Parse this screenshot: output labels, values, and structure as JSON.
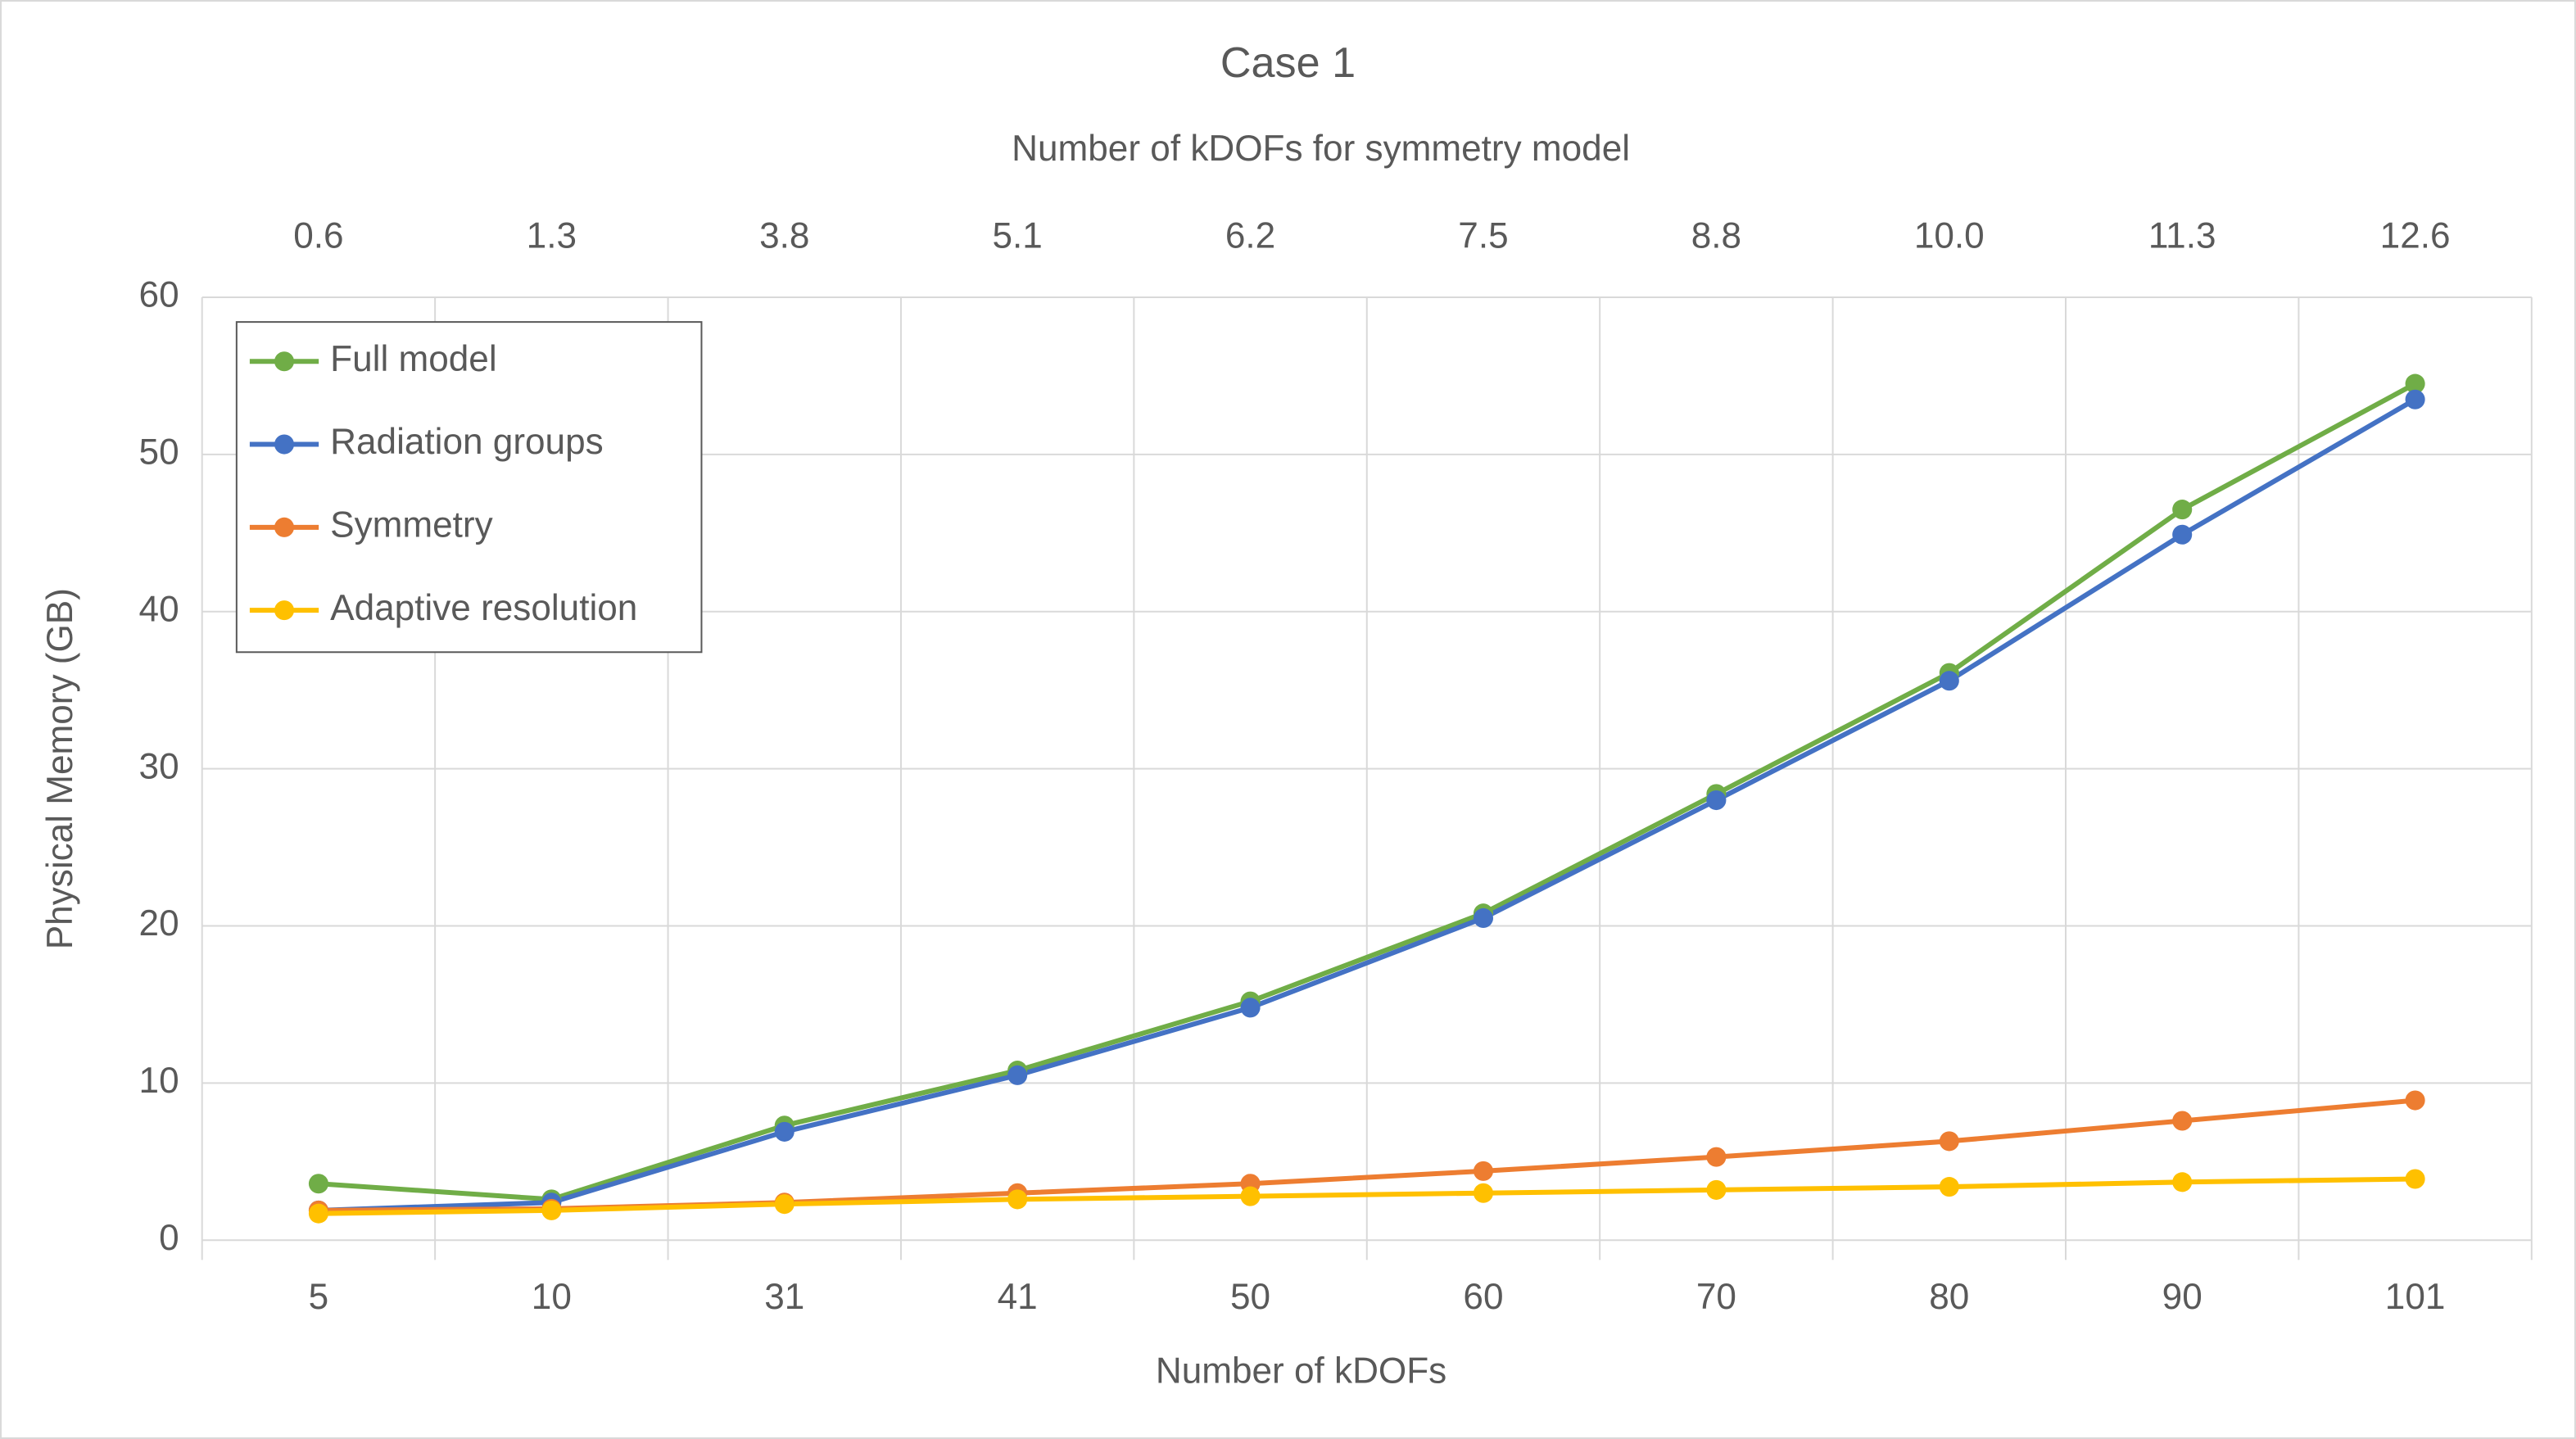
{
  "chart_data": {
    "type": "line",
    "title": "Case 1",
    "x2_label": "Number of kDOFs for symmetry model",
    "x2_categories": [
      "0.6",
      "1.3",
      "3.8",
      "5.1",
      "6.2",
      "7.5",
      "8.8",
      "10.0",
      "11.3",
      "12.6"
    ],
    "x_label": "Number of kDOFs",
    "y_label": "Physical Memory (GB)",
    "categories": [
      "5",
      "10",
      "31",
      "41",
      "50",
      "60",
      "70",
      "80",
      "90",
      "101"
    ],
    "series": [
      {
        "name": "Full model",
        "color": "#70ad47",
        "values": [
          3.6,
          2.6,
          7.3,
          10.8,
          15.2,
          20.8,
          28.4,
          36.1,
          46.5,
          54.5
        ]
      },
      {
        "name": "Radiation groups",
        "color": "#4472c4",
        "values": [
          1.9,
          2.4,
          6.9,
          10.5,
          14.8,
          20.5,
          28.0,
          35.6,
          44.9,
          53.5
        ]
      },
      {
        "name": "Symmetry",
        "color": "#ed7d31",
        "values": [
          1.9,
          2.0,
          2.4,
          3.0,
          3.6,
          4.4,
          5.3,
          6.3,
          7.6,
          8.9
        ]
      },
      {
        "name": "Adaptive resolution",
        "color": "#ffc000",
        "values": [
          1.7,
          1.9,
          2.3,
          2.6,
          2.8,
          3.0,
          3.2,
          3.4,
          3.7,
          3.9
        ]
      }
    ],
    "ylim": [
      0,
      60
    ],
    "yticks": [
      0,
      10,
      20,
      30,
      40,
      50,
      60
    ],
    "grid": true,
    "legend": "top-left"
  }
}
